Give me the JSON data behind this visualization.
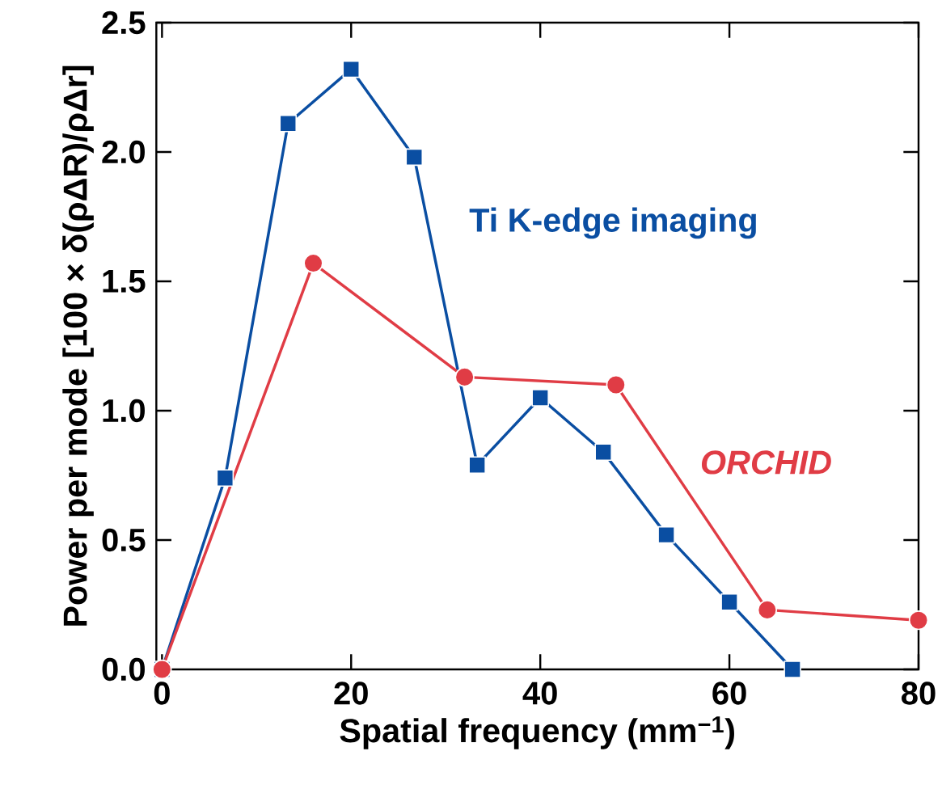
{
  "chart_data": {
    "type": "line",
    "xlabel": "Spatial frequency (mm$^{−1}$)",
    "ylabel": "Power per mode [100 × δ(ρΔR)/ρΔr]",
    "xlim": [
      -0.6,
      80
    ],
    "ylim": [
      0,
      2.5
    ],
    "xticks": [
      0,
      20,
      40,
      60,
      80
    ],
    "yticks": [
      {
        "value": 0,
        "label": "0.0"
      },
      {
        "value": 0.5,
        "label": "0.5"
      },
      {
        "value": 1,
        "label": "1.0"
      },
      {
        "value": 1.5,
        "label": "1.5"
      },
      {
        "value": 2,
        "label": "2.0"
      },
      {
        "value": 2.5,
        "label": "2.5"
      }
    ],
    "grid": false,
    "legend": false,
    "series": [
      {
        "name": "Ti K-edge imaging",
        "color": "#0a4ea2",
        "marker": "square",
        "x": [
          0,
          6.67,
          13.33,
          20,
          26.67,
          33.33,
          40,
          46.67,
          53.33,
          60,
          66.67
        ],
        "values": [
          0,
          0.74,
          2.11,
          2.32,
          1.98,
          0.79,
          1.05,
          0.84,
          0.52,
          0.26,
          0
        ]
      },
      {
        "name": "*ORCHID*",
        "color": "#e03c45",
        "marker": "circle",
        "x": [
          0,
          16,
          32,
          48,
          64,
          80
        ],
        "values": [
          0,
          1.57,
          1.13,
          1.1,
          0.23,
          0.19
        ]
      }
    ]
  }
}
